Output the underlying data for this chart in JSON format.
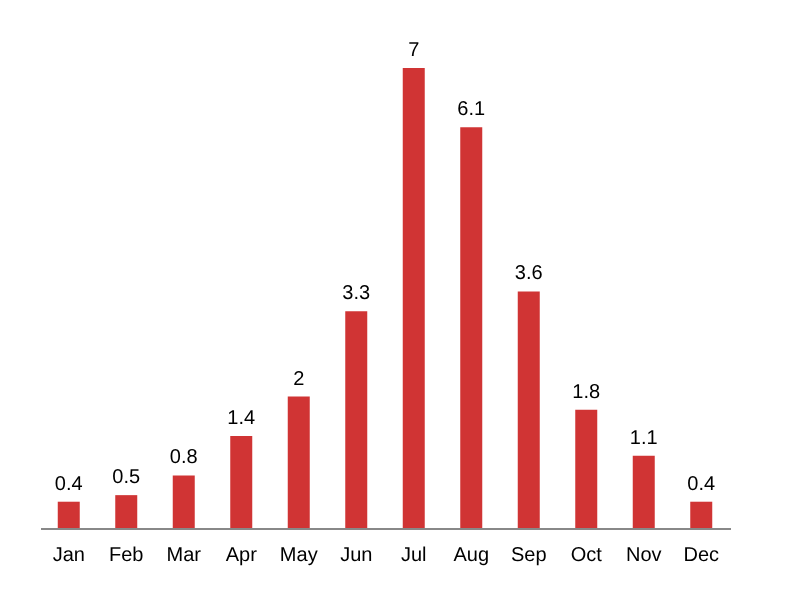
{
  "chart_data": {
    "type": "bar",
    "categories": [
      "Jan",
      "Feb",
      "Mar",
      "Apr",
      "May",
      "Jun",
      "Jul",
      "Aug",
      "Sep",
      "Oct",
      "Nov",
      "Dec"
    ],
    "values": [
      0.4,
      0.5,
      0.8,
      1.4,
      2,
      3.3,
      7,
      6.1,
      3.6,
      1.8,
      1.1,
      0.4
    ],
    "color": "#d03434",
    "data_labels": true
  }
}
